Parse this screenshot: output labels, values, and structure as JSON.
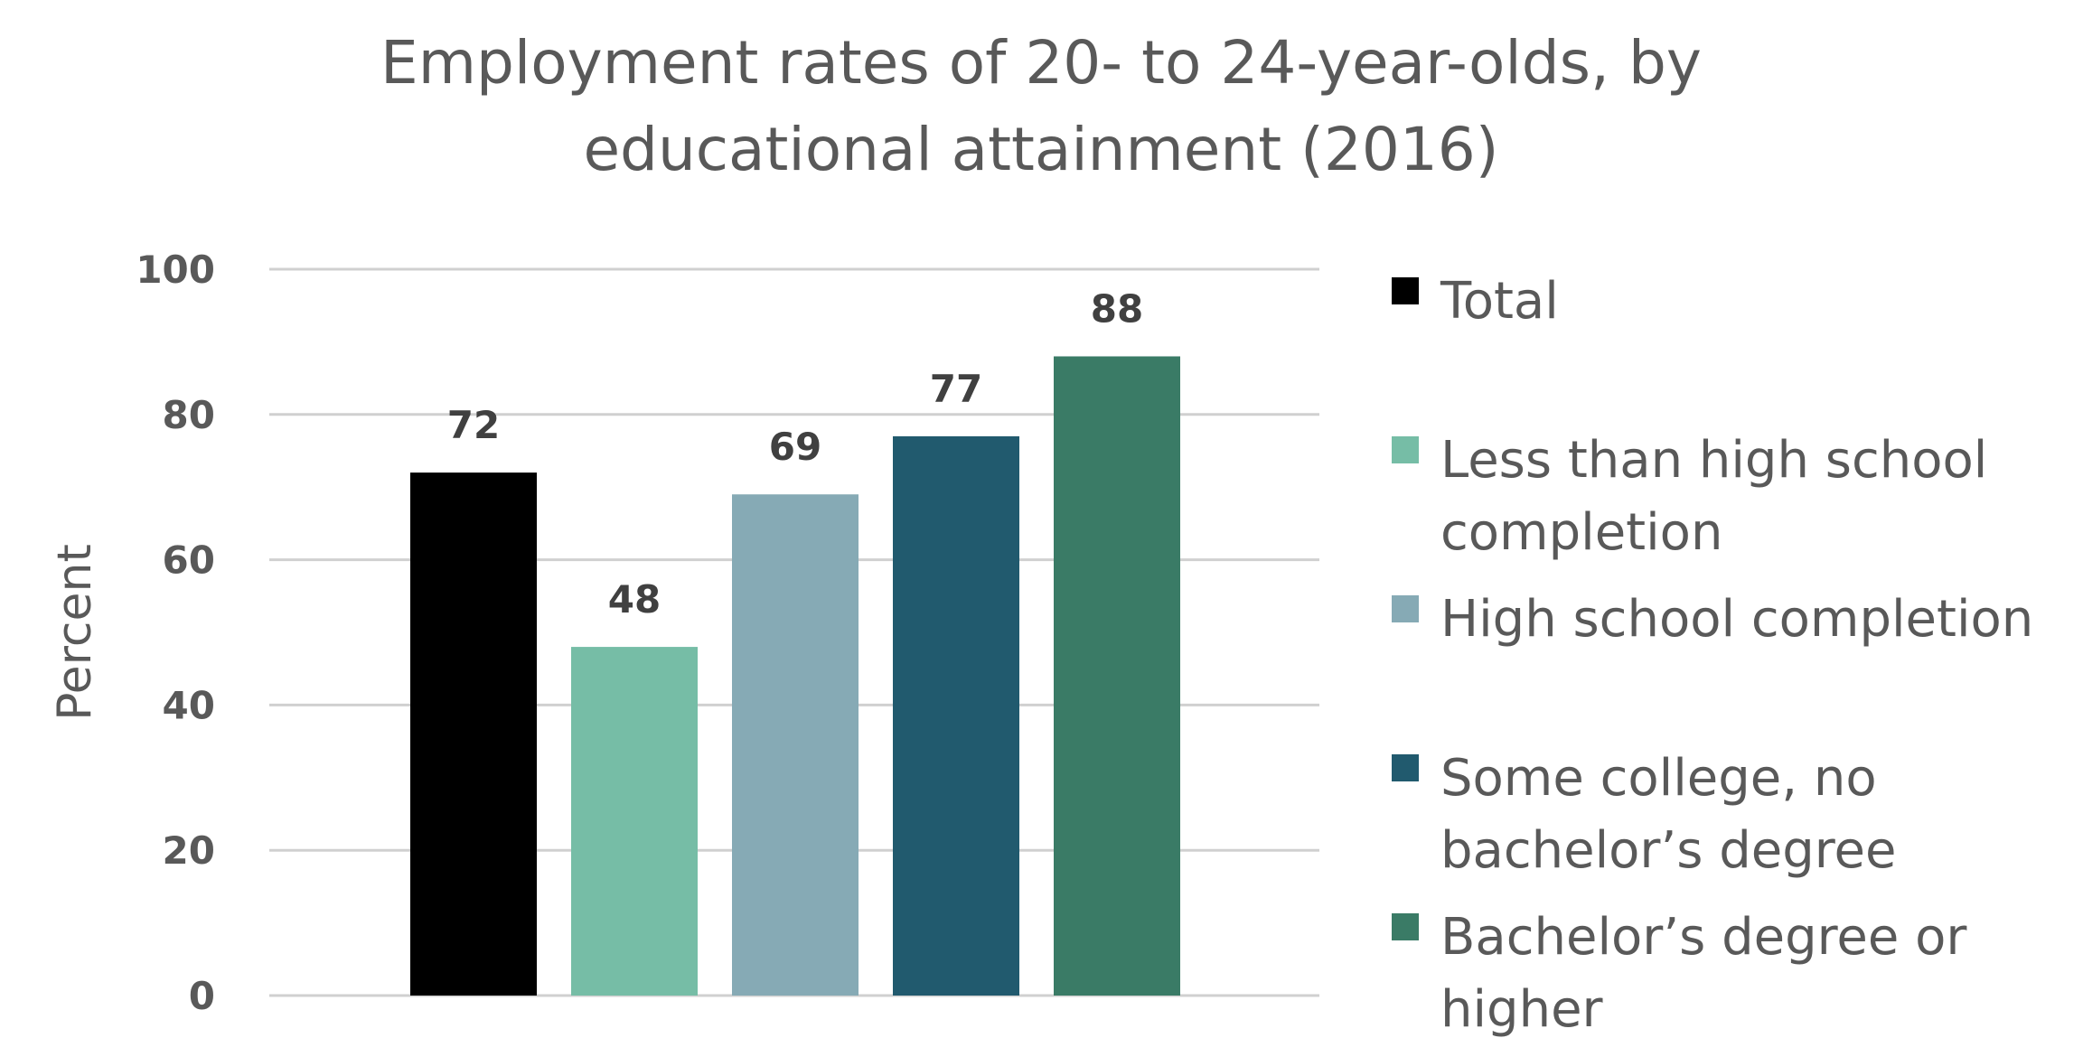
{
  "chart_data": {
    "type": "bar",
    "title": "Employment rates of 20- to 24-year-olds, by educational attainment (2016)",
    "title_lines": [
      "Employment rates of 20- to 24-year-olds, by",
      "educational attainment (2016)"
    ],
    "ylabel": "Percent",
    "xlabel": "",
    "ylim": [
      0,
      100
    ],
    "yticks": [
      "0",
      "20",
      "40",
      "60",
      "80",
      "100"
    ],
    "grid": true,
    "legend_position": "right",
    "categories": [
      "Total",
      "Less than high school completion",
      "High school completion",
      "Some college, no bachelor’s degree",
      "Bachelor’s degree or higher"
    ],
    "values": [
      72,
      48,
      69,
      77,
      88
    ],
    "value_labels": [
      "72",
      "48",
      "69",
      "77",
      "88"
    ],
    "colors": [
      "#000000",
      "#76bda6",
      "#86aab5",
      "#215a6e",
      "#3a7b66"
    ],
    "legend": [
      {
        "lines": [
          "Total"
        ],
        "color": "#000000"
      },
      {
        "lines": [
          "Less than high school",
          "completion"
        ],
        "color": "#76bda6"
      },
      {
        "lines": [
          "High school completion"
        ],
        "color": "#86aab5"
      },
      {
        "lines": [
          "Some college, no",
          "bachelor’s degree"
        ],
        "color": "#215a6e"
      },
      {
        "lines": [
          "Bachelor’s degree or",
          "higher"
        ],
        "color": "#3a7b66"
      }
    ]
  }
}
